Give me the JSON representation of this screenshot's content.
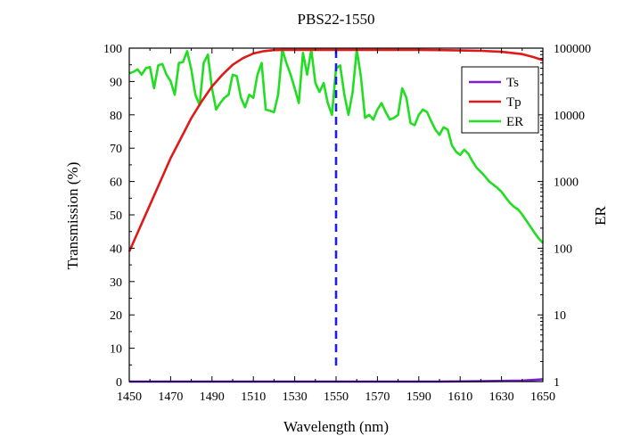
{
  "chart_data": {
    "type": "line",
    "title": "PBS22-1550",
    "xlabel": "Wavelength (nm)",
    "ylabel": "Transmission (%)",
    "y2label": "ER",
    "xlim": [
      1450,
      1650
    ],
    "ylim": [
      0,
      100
    ],
    "y2lim": [
      1,
      100000
    ],
    "y2scale": "log",
    "x_ticks": [
      "1450",
      "1470",
      "1490",
      "1510",
      "1530",
      "1550",
      "1570",
      "1590",
      "1610",
      "1630",
      "1650"
    ],
    "y_ticks": [
      "0",
      "10",
      "20",
      "30",
      "40",
      "50",
      "60",
      "70",
      "80",
      "90",
      "100"
    ],
    "y2_ticks": [
      "1",
      "10",
      "100",
      "1000",
      "10000",
      "100000"
    ],
    "marker_line": {
      "x": 1550,
      "color": "#1f1fe0",
      "style": "dashed"
    },
    "legend_position": "top-right",
    "grid": false,
    "series": [
      {
        "name": "Ts",
        "axis": "left",
        "color": "#7a1fd6",
        "x": [
          1450,
          1500,
          1550,
          1600,
          1620,
          1640,
          1650
        ],
        "y": [
          0,
          0,
          0,
          0,
          0.1,
          0.3,
          0.7
        ]
      },
      {
        "name": "Tp",
        "axis": "left",
        "color": "#e01919",
        "x": [
          1450,
          1455,
          1460,
          1465,
          1470,
          1475,
          1480,
          1485,
          1490,
          1495,
          1500,
          1505,
          1510,
          1515,
          1520,
          1525,
          1530,
          1540,
          1550,
          1560,
          1570,
          1580,
          1590,
          1600,
          1610,
          1620,
          1630,
          1640,
          1645,
          1650
        ],
        "y": [
          39,
          46,
          53,
          60,
          67,
          73,
          79,
          84,
          88.5,
          92,
          95,
          97,
          98.4,
          99.1,
          99.4,
          99.5,
          99.5,
          99.5,
          99.5,
          99.5,
          99.5,
          99.5,
          99.5,
          99.4,
          99.3,
          99.2,
          98.9,
          98.2,
          97.4,
          96.4
        ]
      },
      {
        "name": "ER",
        "axis": "right",
        "color": "#22dd22",
        "x": [
          1450,
          1452,
          1454,
          1456,
          1458,
          1460,
          1462,
          1464,
          1466,
          1468,
          1470,
          1472,
          1474,
          1476,
          1478,
          1480,
          1482,
          1484,
          1486,
          1488,
          1490,
          1492,
          1494,
          1496,
          1498,
          1500,
          1502,
          1504,
          1506,
          1508,
          1510,
          1512,
          1514,
          1516,
          1518,
          1520,
          1522,
          1524,
          1526,
          1528,
          1530,
          1532,
          1534,
          1536,
          1538,
          1540,
          1542,
          1544,
          1546,
          1548,
          1550,
          1552,
          1554,
          1556,
          1558,
          1560,
          1562,
          1564,
          1566,
          1568,
          1570,
          1572,
          1574,
          1576,
          1578,
          1580,
          1582,
          1584,
          1586,
          1588,
          1590,
          1592,
          1594,
          1596,
          1598,
          1600,
          1602,
          1604,
          1606,
          1608,
          1610,
          1612,
          1614,
          1616,
          1618,
          1620,
          1622,
          1624,
          1626,
          1628,
          1630,
          1632,
          1634,
          1636,
          1638,
          1640,
          1642,
          1644,
          1646,
          1648,
          1650
        ],
        "y": [
          42000,
          44000,
          48000,
          40000,
          50000,
          52000,
          25000,
          55000,
          58000,
          40000,
          32000,
          20000,
          60000,
          62000,
          90000,
          48000,
          20000,
          14000,
          60000,
          80000,
          25000,
          12000,
          15000,
          18000,
          20000,
          40000,
          38000,
          18000,
          13000,
          20000,
          18000,
          40000,
          60000,
          12000,
          11500,
          11000,
          20000,
          95000,
          60000,
          40000,
          25000,
          15000,
          85000,
          40000,
          95000,
          30000,
          22000,
          30000,
          15000,
          10000,
          50000,
          55000,
          20000,
          10000,
          22000,
          95000,
          38000,
          9000,
          10000,
          8500,
          12000,
          15000,
          11000,
          8500,
          9000,
          10000,
          25000,
          18000,
          7500,
          7000,
          10000,
          12000,
          11000,
          8000,
          6000,
          5000,
          6500,
          6000,
          3500,
          2800,
          2500,
          3000,
          2600,
          2000,
          1600,
          1400,
          1200,
          1000,
          900,
          800,
          700,
          580,
          480,
          420,
          380,
          320,
          260,
          210,
          170,
          140,
          120
        ]
      }
    ]
  },
  "colors": {
    "axis": "#000000",
    "marker_line": "#1f1fe0"
  }
}
